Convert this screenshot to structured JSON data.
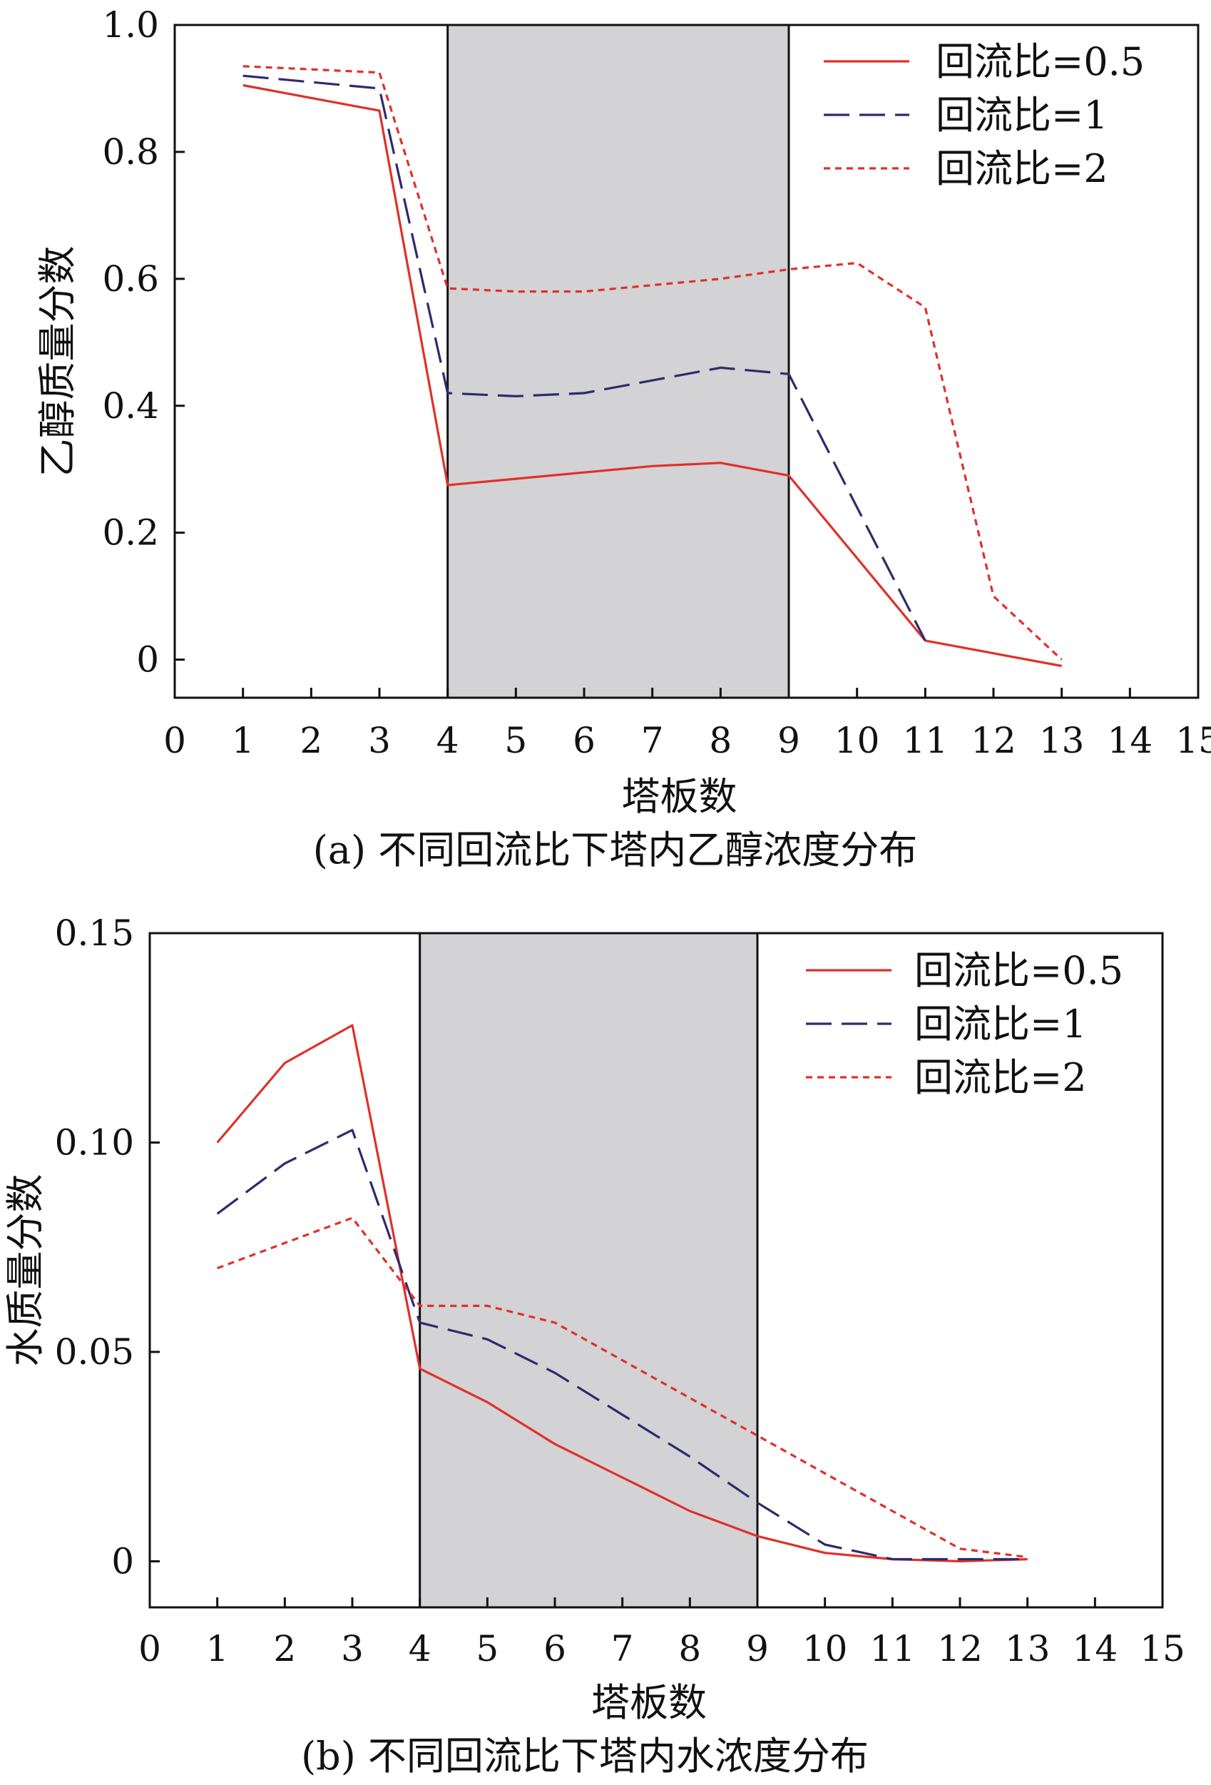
{
  "chart_data": [
    {
      "type": "line",
      "caption": "(a) 不同回流比下塔内乙醇浓度分布",
      "xlabel": "塔板数",
      "ylabel": "乙醇质量分数",
      "xlim": [
        0,
        15
      ],
      "ylim": [
        -0.06,
        1.0
      ],
      "x_ticks": [
        0,
        1,
        2,
        3,
        4,
        5,
        6,
        7,
        8,
        9,
        10,
        11,
        12,
        13,
        14,
        15
      ],
      "x_tick_labels": [
        "0",
        "1",
        "2",
        "3",
        "4",
        "5",
        "6",
        "7",
        "8",
        "9",
        "10",
        "11",
        "12",
        "13",
        "14",
        "15"
      ],
      "y_ticks": [
        0,
        0.2,
        0.4,
        0.6,
        0.8,
        1.0
      ],
      "y_tick_labels": [
        "0",
        "0.2",
        "0.4",
        "0.6",
        "0.8",
        "1.0"
      ],
      "shaded_region": {
        "x_from": 4,
        "x_to": 9,
        "color": "#d3d2d4"
      },
      "legend_position": "top-right",
      "series": [
        {
          "name": "回流比=0.5",
          "color": "#e0302a",
          "style": "solid",
          "x": [
            1,
            3,
            4,
            5,
            6,
            7,
            8,
            9,
            11,
            12,
            13
          ],
          "y": [
            0.905,
            0.865,
            0.275,
            0.285,
            0.295,
            0.305,
            0.31,
            0.29,
            0.03,
            0.01,
            -0.01
          ]
        },
        {
          "name": "回流比=1",
          "color": "#2e2a6e",
          "style": "dashed",
          "x": [
            1,
            3,
            4,
            5,
            6,
            7,
            8,
            9,
            11
          ],
          "y": [
            0.92,
            0.9,
            0.42,
            0.415,
            0.42,
            0.44,
            0.46,
            0.45,
            0.03
          ]
        },
        {
          "name": "回流比=2",
          "color": "#e0302a",
          "style": "dotted",
          "x": [
            1,
            3,
            4,
            5,
            6,
            7,
            8,
            9,
            10,
            11,
            12,
            13
          ],
          "y": [
            0.935,
            0.925,
            0.585,
            0.58,
            0.58,
            0.59,
            0.6,
            0.615,
            0.625,
            0.555,
            0.1,
            0.0
          ]
        }
      ]
    },
    {
      "type": "line",
      "caption": "(b) 不同回流比下塔内水浓度分布",
      "xlabel": "塔板数",
      "ylabel": "水质量分数",
      "xlim": [
        0,
        15
      ],
      "ylim": [
        -0.011,
        0.15
      ],
      "x_ticks": [
        0,
        1,
        2,
        3,
        4,
        5,
        6,
        7,
        8,
        9,
        10,
        11,
        12,
        13,
        14,
        15
      ],
      "x_tick_labels": [
        "0",
        "1",
        "2",
        "3",
        "4",
        "5",
        "6",
        "7",
        "8",
        "9",
        "10",
        "11",
        "12",
        "13",
        "14",
        "15"
      ],
      "y_ticks": [
        0,
        0.05,
        0.1,
        0.15
      ],
      "y_tick_labels": [
        "0",
        "0.05",
        "0.10",
        "0.15"
      ],
      "shaded_region": {
        "x_from": 4,
        "x_to": 9,
        "color": "#d3d2d4"
      },
      "legend_position": "top-right",
      "series": [
        {
          "name": "回流比=0.5",
          "color": "#e0302a",
          "style": "solid",
          "x": [
            1,
            2,
            3,
            4,
            5,
            6,
            7,
            8,
            9,
            10,
            11,
            12,
            13
          ],
          "y": [
            0.1,
            0.119,
            0.128,
            0.046,
            0.038,
            0.028,
            0.02,
            0.012,
            0.006,
            0.002,
            0.0005,
            0.0,
            0.0005
          ]
        },
        {
          "name": "回流比=1",
          "color": "#2e2a6e",
          "style": "dashed",
          "x": [
            1,
            2,
            3,
            4,
            5,
            6,
            7,
            8,
            9,
            10,
            11,
            12,
            13
          ],
          "y": [
            0.083,
            0.095,
            0.103,
            0.057,
            0.053,
            0.045,
            0.035,
            0.025,
            0.014,
            0.004,
            0.0005,
            0.0005,
            0.0005
          ]
        },
        {
          "name": "回流比=2",
          "color": "#e0302a",
          "style": "dotted",
          "x": [
            1,
            2,
            3,
            4,
            5,
            6,
            7,
            8,
            9,
            10,
            11,
            12,
            13
          ],
          "y": [
            0.07,
            0.076,
            0.082,
            0.061,
            0.061,
            0.057,
            0.048,
            0.039,
            0.03,
            0.021,
            0.012,
            0.003,
            0.001
          ]
        }
      ]
    }
  ]
}
